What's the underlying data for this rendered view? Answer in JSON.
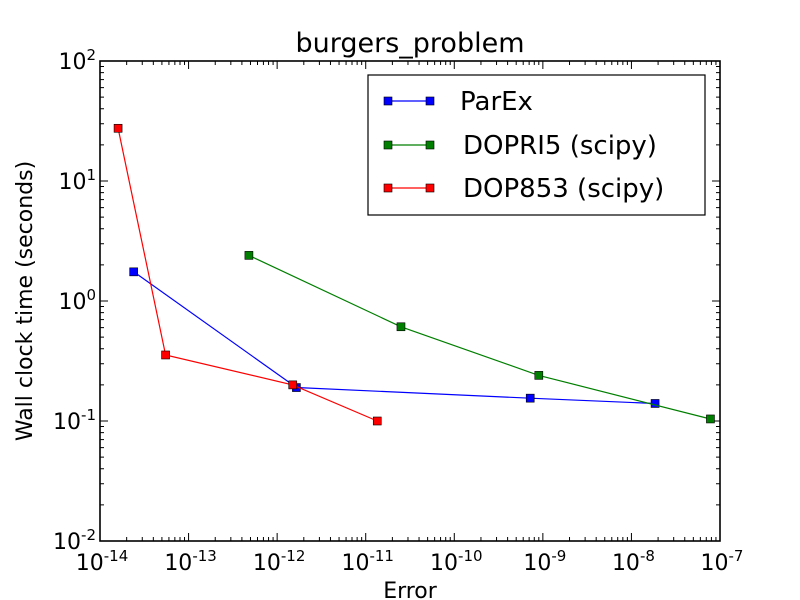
{
  "chart_data": {
    "type": "line",
    "title": "burgers_problem",
    "xlabel": "Error",
    "ylabel": "Wall clock time (seconds)",
    "xscale": "log",
    "yscale": "log",
    "xlim": [
      1e-14,
      1e-07
    ],
    "ylim": [
      0.01,
      100
    ],
    "x_ticks": [
      {
        "base": "10",
        "exp": "-14",
        "value": 1e-14
      },
      {
        "base": "10",
        "exp": "-13",
        "value": 1e-13
      },
      {
        "base": "10",
        "exp": "-12",
        "value": 1e-12
      },
      {
        "base": "10",
        "exp": "-11",
        "value": 1e-11
      },
      {
        "base": "10",
        "exp": "-10",
        "value": 1e-10
      },
      {
        "base": "10",
        "exp": "-9",
        "value": 1e-09
      },
      {
        "base": "10",
        "exp": "-8",
        "value": 1e-08
      },
      {
        "base": "10",
        "exp": "-7",
        "value": 1e-07
      }
    ],
    "y_ticks": [
      {
        "base": "10",
        "exp": "-2",
        "value": 0.01
      },
      {
        "base": "10",
        "exp": "-1",
        "value": 0.1
      },
      {
        "base": "10",
        "exp": "0",
        "value": 1
      },
      {
        "base": "10",
        "exp": "1",
        "value": 10
      },
      {
        "base": "10",
        "exp": "2",
        "value": 100
      }
    ],
    "legend_position": "top-right",
    "series": [
      {
        "name": "ParEx",
        "color": "#0000ff",
        "x": [
          2.4e-14,
          1.65e-12,
          7.2e-10,
          1.85e-08
        ],
        "y": [
          1.75,
          0.19,
          0.155,
          0.14
        ]
      },
      {
        "name": "DOPRI5 (scipy)",
        "color": "#007f00",
        "x": [
          4.8e-13,
          2.5e-11,
          9e-10,
          7.8e-08
        ],
        "y": [
          2.4,
          0.61,
          0.24,
          0.104
        ]
      },
      {
        "name": "DOP853 (scipy)",
        "color": "#ff0000",
        "x": [
          1.6e-14,
          5.5e-14,
          1.5e-12,
          1.35e-11
        ],
        "y": [
          27.5,
          0.355,
          0.2,
          0.1
        ]
      }
    ]
  }
}
